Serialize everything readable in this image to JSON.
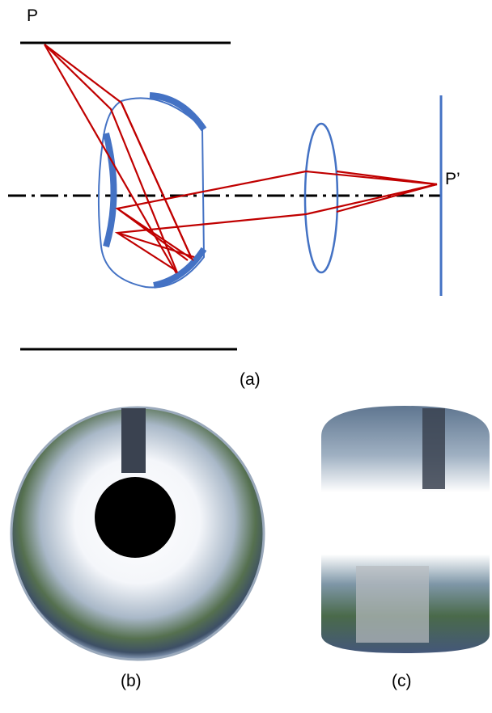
{
  "labels": {
    "object_point": "P",
    "image_point": "P’",
    "panel_a": "(a)",
    "panel_b": "(b)",
    "panel_c": "(c)"
  }
}
